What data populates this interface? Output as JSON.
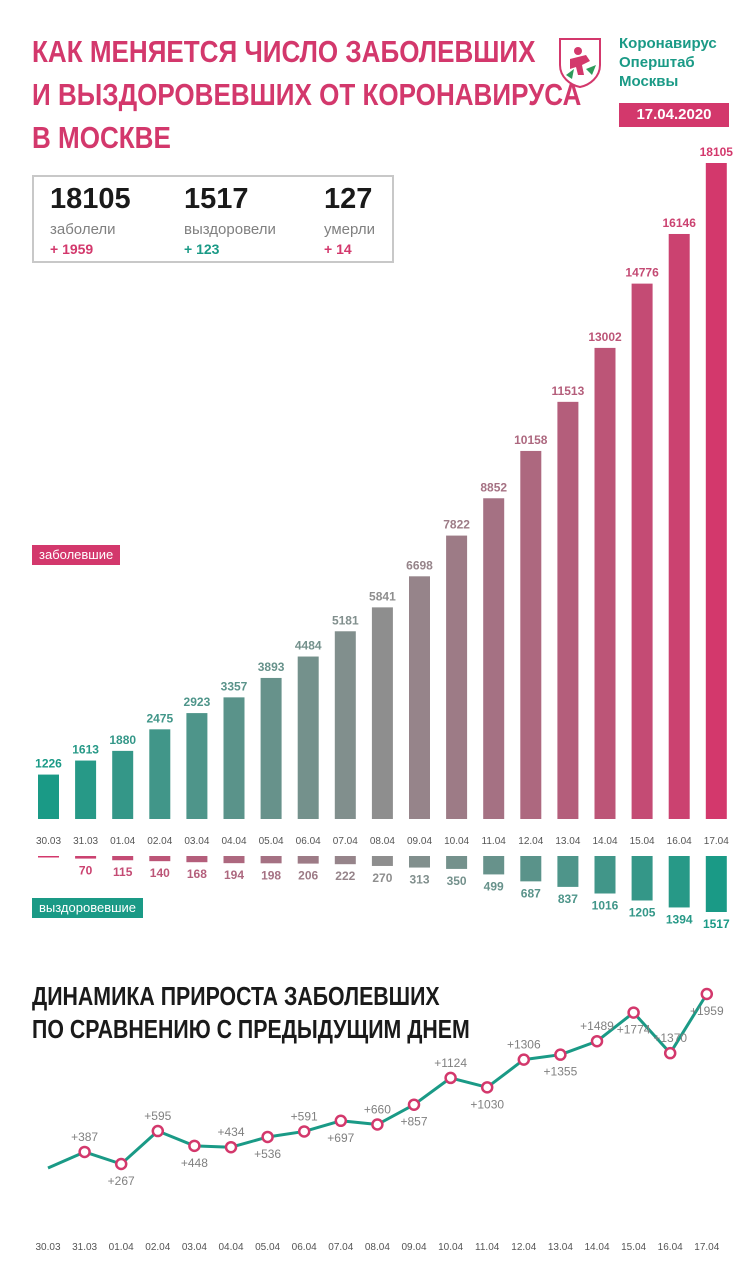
{
  "header": {
    "title_lines": [
      "КАК МЕНЯЕТСЯ ЧИСЛО ЗАБОЛЕВШИХ",
      "И ВЫЗДОРОВЕВШИХ ОТ КОРОНАВИРУСА",
      "В МОСКВЕ"
    ],
    "logo_lines": [
      "Коронавирус",
      "Оперштаб",
      "Москвы"
    ],
    "date": "17.04.2020"
  },
  "summary": {
    "cases": {
      "value": "18105",
      "label": "заболели",
      "delta": "+ 1959"
    },
    "recovered": {
      "value": "1517",
      "label": "выздоровели",
      "delta": "+ 123"
    },
    "deaths": {
      "value": "127",
      "label": "умерли",
      "delta": "+ 14"
    }
  },
  "legend": {
    "cases": "заболевшие",
    "recovered": "выздоровевшие"
  },
  "colors": {
    "accent": "#d3386c",
    "teal": "#1a9a86",
    "grey": "#8e8e8e",
    "gray_text": "#808080"
  },
  "chart_data": [
    {
      "type": "bar",
      "title": "",
      "categories": [
        "30.03",
        "31.03",
        "01.04",
        "02.04",
        "03.04",
        "04.04",
        "05.04",
        "06.04",
        "07.04",
        "08.04",
        "09.04",
        "10.04",
        "11.04",
        "12.04",
        "13.04",
        "14.04",
        "15.04",
        "16.04",
        "17.04"
      ],
      "series": [
        {
          "name": "заболевшие",
          "values": [
            1226,
            1613,
            1880,
            2475,
            2923,
            3357,
            3893,
            4484,
            5181,
            5841,
            6698,
            7822,
            8852,
            10158,
            11513,
            13002,
            14776,
            16146,
            18105
          ],
          "labels": [
            "1226",
            "1613",
            "1880",
            "2475",
            "2923",
            "3357",
            "3893",
            "4484",
            "5181",
            "5841",
            "6698",
            "7822",
            "8852",
            "10158",
            "11513",
            "13002",
            "14776",
            "16146",
            "18105"
          ]
        },
        {
          "name": "выздоровевшие",
          "values": [
            30,
            70,
            115,
            140,
            168,
            194,
            198,
            206,
            222,
            270,
            313,
            350,
            499,
            687,
            837,
            1016,
            1205,
            1394,
            1517
          ],
          "labels": [
            "",
            "70",
            "115",
            "140",
            "168",
            "194",
            "198",
            "206",
            "222",
            "270",
            "313",
            "350",
            "499",
            "687",
            "837",
            "1016",
            "1205",
            "1394",
            "1517"
          ]
        }
      ],
      "ylim": [
        0,
        18105
      ],
      "grid": false
    },
    {
      "type": "line",
      "title_lines": [
        "ДИНАМИКА ПРИРОСТА ЗАБОЛЕВШИХ",
        "ПО СРАВНЕНИЮ С ПРЕДЫДУЩИМ ДНЕМ"
      ],
      "categories": [
        "30.03",
        "31.03",
        "01.04",
        "02.04",
        "03.04",
        "04.04",
        "05.04",
        "06.04",
        "07.04",
        "08.04",
        "09.04",
        "10.04",
        "11.04",
        "12.04",
        "13.04",
        "14.04",
        "15.04",
        "16.04",
        "17.04"
      ],
      "series": [
        {
          "name": "",
          "values": [
            null,
            387,
            267,
            595,
            448,
            434,
            536,
            591,
            697,
            660,
            857,
            1124,
            1030,
            1306,
            1355,
            1489,
            1774,
            1370,
            1959
          ],
          "labels": [
            "",
            "+387",
            "+267",
            "+595",
            "+448",
            "+434",
            "+536",
            "+591",
            "+697",
            "+660",
            "+857",
            "+1124",
            "+1030",
            "+1306",
            "+1355",
            "+1489",
            "+1774",
            "+1370",
            "+1959"
          ]
        }
      ],
      "grid": false
    }
  ]
}
